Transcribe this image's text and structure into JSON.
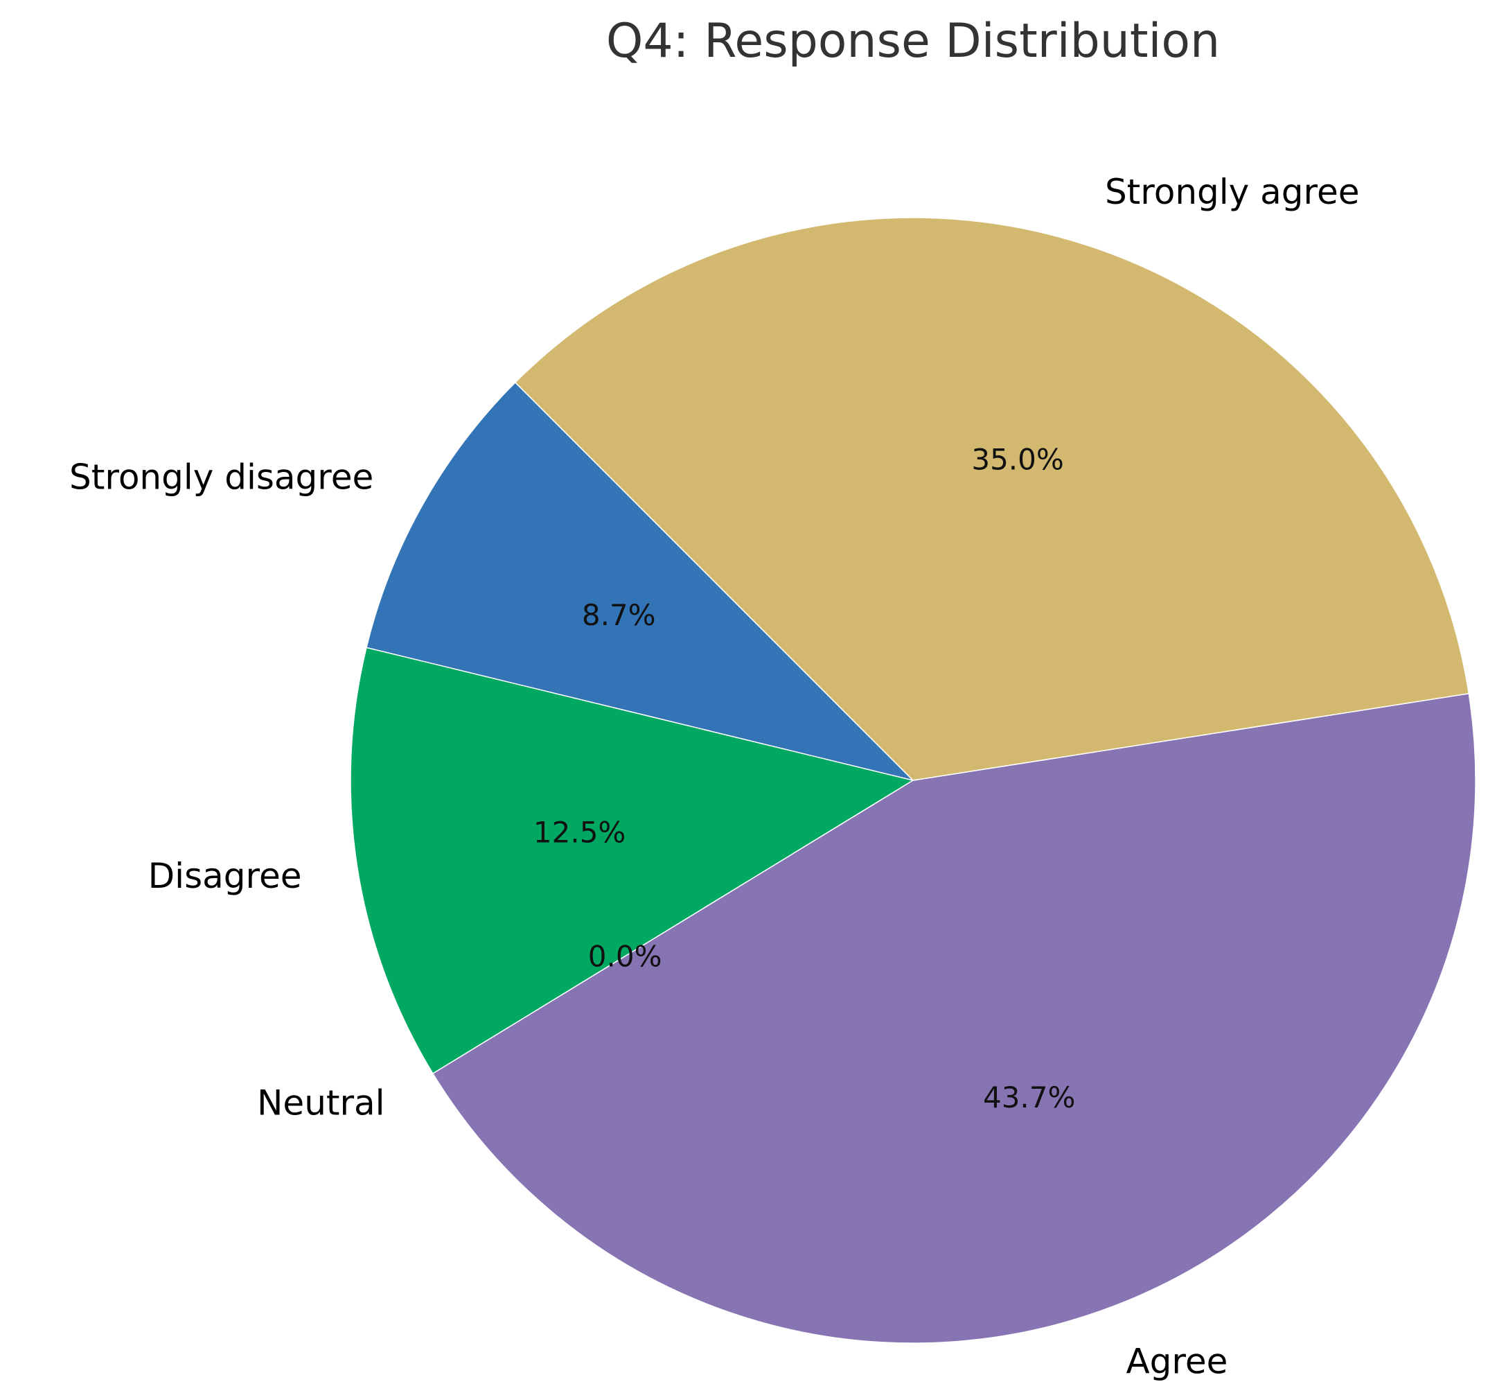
{
  "chart_data": {
    "type": "pie",
    "title": "Q4: Response Distribution",
    "start_angle_deg": 135,
    "direction": "counterclockwise",
    "slices": [
      {
        "label": "Strongly disagree",
        "value": 8.7,
        "pct_label": "8.7%",
        "color": "#3274b5"
      },
      {
        "label": "Disagree",
        "value": 12.5,
        "pct_label": "12.5%",
        "color": "#00a862"
      },
      {
        "label": "Neutral",
        "value": 0.0,
        "pct_label": "0.0%",
        "color": "#d95f02"
      },
      {
        "label": "Agree",
        "value": 43.7,
        "pct_label": "43.7%",
        "color": "#8774b3"
      },
      {
        "label": "Strongly agree",
        "value": 35.0,
        "pct_label": "35.0%",
        "color": "#d3b970"
      }
    ]
  }
}
